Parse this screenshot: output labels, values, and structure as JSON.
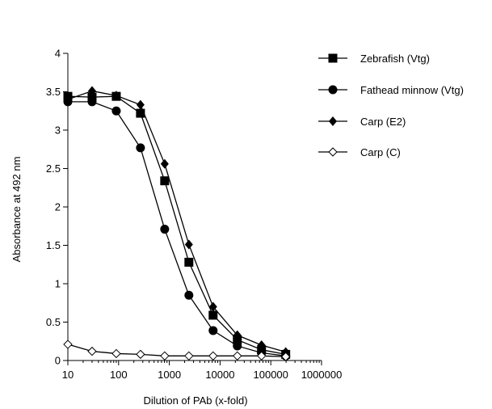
{
  "chart_data": {
    "type": "line",
    "xscale": "log",
    "xlabel": "Dilution of PAb (x-fold)",
    "ylabel": "Absorbance at  492 nm",
    "xlim": [
      10,
      1000000
    ],
    "ylim": [
      0,
      4
    ],
    "xticks": [
      10,
      100,
      1000,
      10000,
      100000,
      1000000
    ],
    "xtick_labels": [
      "10",
      "100",
      "1000",
      "10000",
      "100000",
      "1000000"
    ],
    "yticks": [
      0,
      0.5,
      1,
      1.5,
      2,
      2.5,
      3,
      3.5,
      4
    ],
    "ytick_labels": [
      "0",
      "0.5",
      "1",
      "1.5",
      "2",
      "2.5",
      "3",
      "3.5",
      "4"
    ],
    "grid": false,
    "legend_position": "top-right",
    "series": [
      {
        "name": "Zebrafish (Vtg)",
        "marker": "square-filled",
        "x": [
          10,
          30,
          90,
          270,
          810,
          2430,
          7290,
          21870,
          65610,
          196830
        ],
        "y": [
          3.44,
          3.43,
          3.44,
          3.22,
          2.34,
          1.28,
          0.59,
          0.27,
          0.14,
          0.08
        ]
      },
      {
        "name": "Fathead minnow (Vtg)",
        "marker": "circle-filled",
        "x": [
          10,
          30,
          90,
          270,
          810,
          2430,
          7290,
          21870,
          65610,
          196830
        ],
        "y": [
          3.37,
          3.37,
          3.25,
          2.77,
          1.71,
          0.85,
          0.39,
          0.19,
          0.1,
          0.06
        ]
      },
      {
        "name": "Carp (E2)",
        "marker": "diamond-filled",
        "x": [
          10,
          30,
          90,
          270,
          810,
          2430,
          7290,
          21870,
          65610,
          196830
        ],
        "y": [
          3.4,
          3.51,
          3.45,
          3.33,
          2.56,
          1.51,
          0.7,
          0.33,
          0.2,
          0.11
        ]
      },
      {
        "name": "Carp (C)",
        "marker": "diamond-open",
        "x": [
          10,
          30,
          90,
          270,
          810,
          2430,
          7290,
          21870,
          65610,
          196830
        ],
        "y": [
          0.21,
          0.12,
          0.09,
          0.08,
          0.06,
          0.06,
          0.06,
          0.06,
          0.06,
          0.05
        ]
      }
    ]
  }
}
